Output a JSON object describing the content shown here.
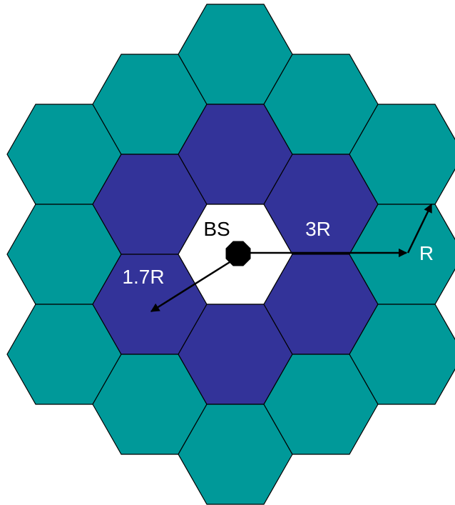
{
  "colors": {
    "outer_ring": "#009999",
    "middle_ring": "#333399",
    "center_cell": "#ffffff",
    "base_station": "#000000"
  },
  "labels": {
    "base_station": "BS",
    "reuse_distance": "3R",
    "cell_radius": "R",
    "neighbor_distance": "1.7R"
  }
}
